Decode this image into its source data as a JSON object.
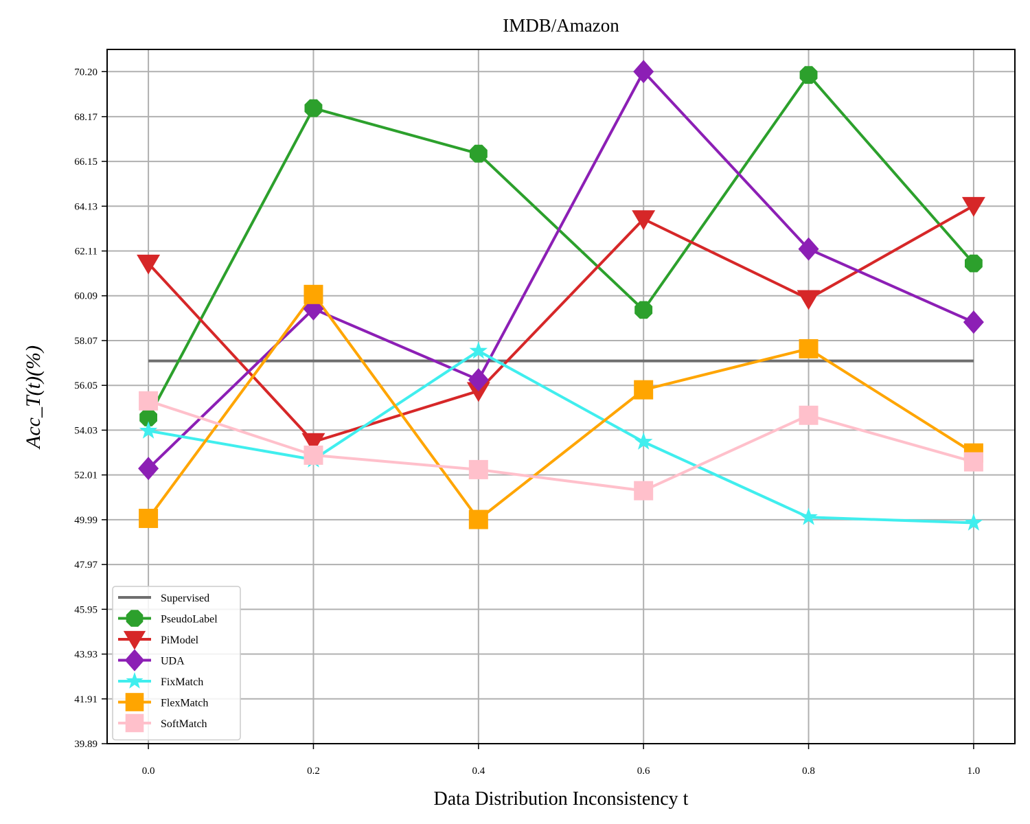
{
  "chart_data": {
    "type": "line",
    "title": "IMDB/Amazon",
    "xlabel": "Data Distribution Inconsistency t",
    "ylabel": "Acc_T(t)(%)",
    "x": [
      0.0,
      0.2,
      0.4,
      0.6,
      0.8,
      1.0
    ],
    "x_tick_labels": [
      "0.0",
      "0.2",
      "0.4",
      "0.6",
      "0.8",
      "1.0"
    ],
    "y_ticks": [
      39.89,
      41.91,
      43.93,
      45.95,
      47.97,
      49.99,
      52.01,
      54.03,
      56.05,
      58.07,
      60.09,
      62.11,
      64.13,
      66.15,
      68.17,
      70.2
    ],
    "y_tick_labels": [
      "39.89",
      "41.91",
      "43.93",
      "45.95",
      "47.97",
      "49.99",
      "52.01",
      "54.03",
      "56.05",
      "58.07",
      "60.09",
      "62.11",
      "64.13",
      "66.15",
      "68.17",
      "70.20"
    ],
    "xlim": [
      -0.05,
      1.05
    ],
    "ylim": [
      39.89,
      71.2
    ],
    "grid": true,
    "legend_position": "lower-left",
    "series": [
      {
        "name": "Supervised",
        "color": "#6e6e6e",
        "marker": "none",
        "values": [
          57.15,
          57.15,
          57.15,
          57.15,
          57.15,
          57.15
        ]
      },
      {
        "name": "PseudoLabel",
        "color": "#2ca02c",
        "marker": "octagon",
        "values": [
          54.6,
          68.55,
          66.5,
          59.45,
          70.05,
          61.55
        ]
      },
      {
        "name": "PiModel",
        "color": "#d62728",
        "marker": "triangle-down",
        "values": [
          61.55,
          53.5,
          55.8,
          63.55,
          59.95,
          64.15
        ]
      },
      {
        "name": "UDA",
        "color": "#8c1fb5",
        "marker": "diamond",
        "values": [
          52.3,
          59.5,
          56.3,
          70.2,
          62.2,
          58.9
        ]
      },
      {
        "name": "FixMatch",
        "color": "#40eeee",
        "marker": "star",
        "values": [
          54.0,
          52.7,
          57.6,
          53.5,
          50.1,
          49.85
        ]
      },
      {
        "name": "FlexMatch",
        "color": "#ffa500",
        "marker": "square",
        "values": [
          50.05,
          60.15,
          50.0,
          55.85,
          57.7,
          53.0
        ]
      },
      {
        "name": "SoftMatch",
        "color": "#ffc0cb",
        "marker": "square",
        "values": [
          55.35,
          52.9,
          52.25,
          51.3,
          54.7,
          52.6
        ]
      }
    ]
  }
}
